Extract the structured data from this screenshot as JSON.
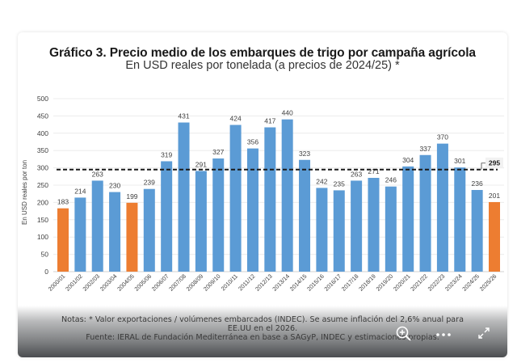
{
  "header": {
    "title": "Gráfico 3. Precio medio de los embarques de trigo por campaña agrícola",
    "subtitle": "En USD reales por tonelada (a precios de 2024/25) *"
  },
  "chart_data": {
    "type": "bar",
    "title": "Gráfico 3. Precio medio de los embarques de trigo por campaña agrícola",
    "subtitle": "En USD reales por tonelada (a precios de 2024/25) *",
    "xlabel": "",
    "ylabel": "En USD reales por ton",
    "ylim": [
      0,
      500
    ],
    "yticks": [
      0,
      50,
      100,
      150,
      200,
      250,
      300,
      350,
      400,
      450,
      500
    ],
    "grid": true,
    "categories": [
      "2000/01",
      "2001/02",
      "2002/03",
      "2003/04",
      "2004/05",
      "2005/06",
      "2006/07",
      "2007/08",
      "2008/09",
      "2009/10",
      "2010/11",
      "2011/12",
      "2012/13",
      "2013/14",
      "2014/15",
      "2015/16",
      "2016/17",
      "2017/18",
      "2018/19",
      "2019/20",
      "2020/21",
      "2021/22",
      "2022/23",
      "2023/24",
      "2024/25",
      "2025/26"
    ],
    "values": [
      183,
      214,
      263,
      230,
      199,
      239,
      319,
      431,
      291,
      327,
      424,
      356,
      417,
      440,
      323,
      242,
      235,
      263,
      271,
      246,
      304,
      337,
      370,
      301,
      236,
      201
    ],
    "highlighted": [
      "2000/01",
      "2004/05",
      "2025/26"
    ],
    "colors": {
      "bar": "#5b9bd5",
      "highlight": "#ed7d31",
      "average_line": "#1a1a1a"
    },
    "average": {
      "value": 295,
      "label": "295",
      "style": "dashed"
    }
  },
  "footer": {
    "notes_line1": "Notas: * Valor exportaciones / volúmenes embarcados (INDEC). Se asume inflación del 2,6% anual para",
    "notes_line2": "EE.UU en el 2026.",
    "source": "Fuente: IERAL de Fundación Mediterránea en base a SAGyP, INDEC y estimaciones propias."
  },
  "controls": {
    "zoom_icon": "zoom-in-icon",
    "more_icon": "more-options-icon",
    "expand_icon": "expand-icon"
  }
}
